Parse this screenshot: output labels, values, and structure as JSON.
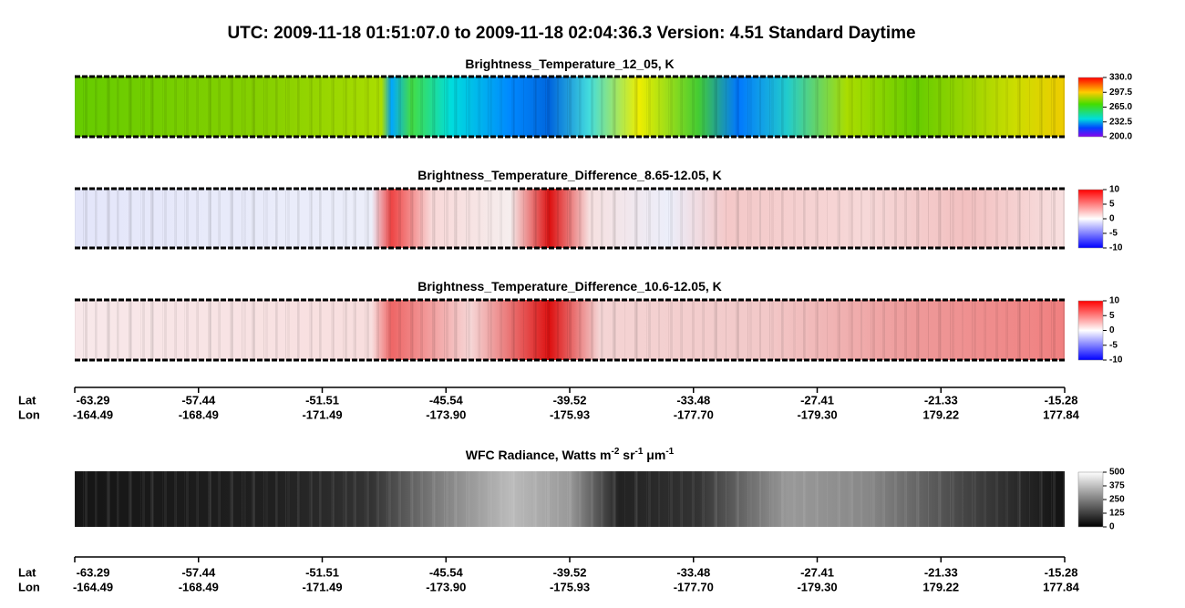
{
  "title": "UTC:  2009-11-18   01:51:07.0  to  2009-11-18   02:04:36.3    Version: 4.51  Standard Daytime",
  "panels": [
    {
      "title": [
        "Brightness_Temperature_12_05, K"
      ],
      "colorbar": [
        "330.0",
        "297.5",
        "265.0",
        "232.5",
        "200.0"
      ]
    },
    {
      "title": [
        "Brightness_Temperature_Difference_8.65-12.05, K"
      ],
      "colorbar": [
        "10",
        "5",
        "0",
        "-5",
        "-10"
      ]
    },
    {
      "title": [
        "Brightness_Temperature_Difference_10.6-12.05, K"
      ],
      "colorbar": [
        "10",
        "5",
        "0",
        "-5",
        "-10"
      ]
    },
    {
      "title": [
        "WFC Radiance, Watts m",
        "-2",
        " sr",
        "-1",
        " μm",
        "-1"
      ],
      "colorbar": [
        "500",
        "375",
        "250",
        "125",
        "0"
      ]
    }
  ],
  "axis": {
    "lat_label": "Lat",
    "lon_label": "Lon",
    "ticks": [
      {
        "lat": "-63.29",
        "lon": "-164.49"
      },
      {
        "lat": "-57.44",
        "lon": "-168.49"
      },
      {
        "lat": "-51.51",
        "lon": "-171.49"
      },
      {
        "lat": "-45.54",
        "lon": "-173.90"
      },
      {
        "lat": "-39.52",
        "lon": "-175.93"
      },
      {
        "lat": "-33.48",
        "lon": "-177.70"
      },
      {
        "lat": "-27.41",
        "lon": "-179.30"
      },
      {
        "lat": "-21.33",
        "lon": "179.22"
      },
      {
        "lat": "-15.28",
        "lon": "177.84"
      }
    ]
  }
}
